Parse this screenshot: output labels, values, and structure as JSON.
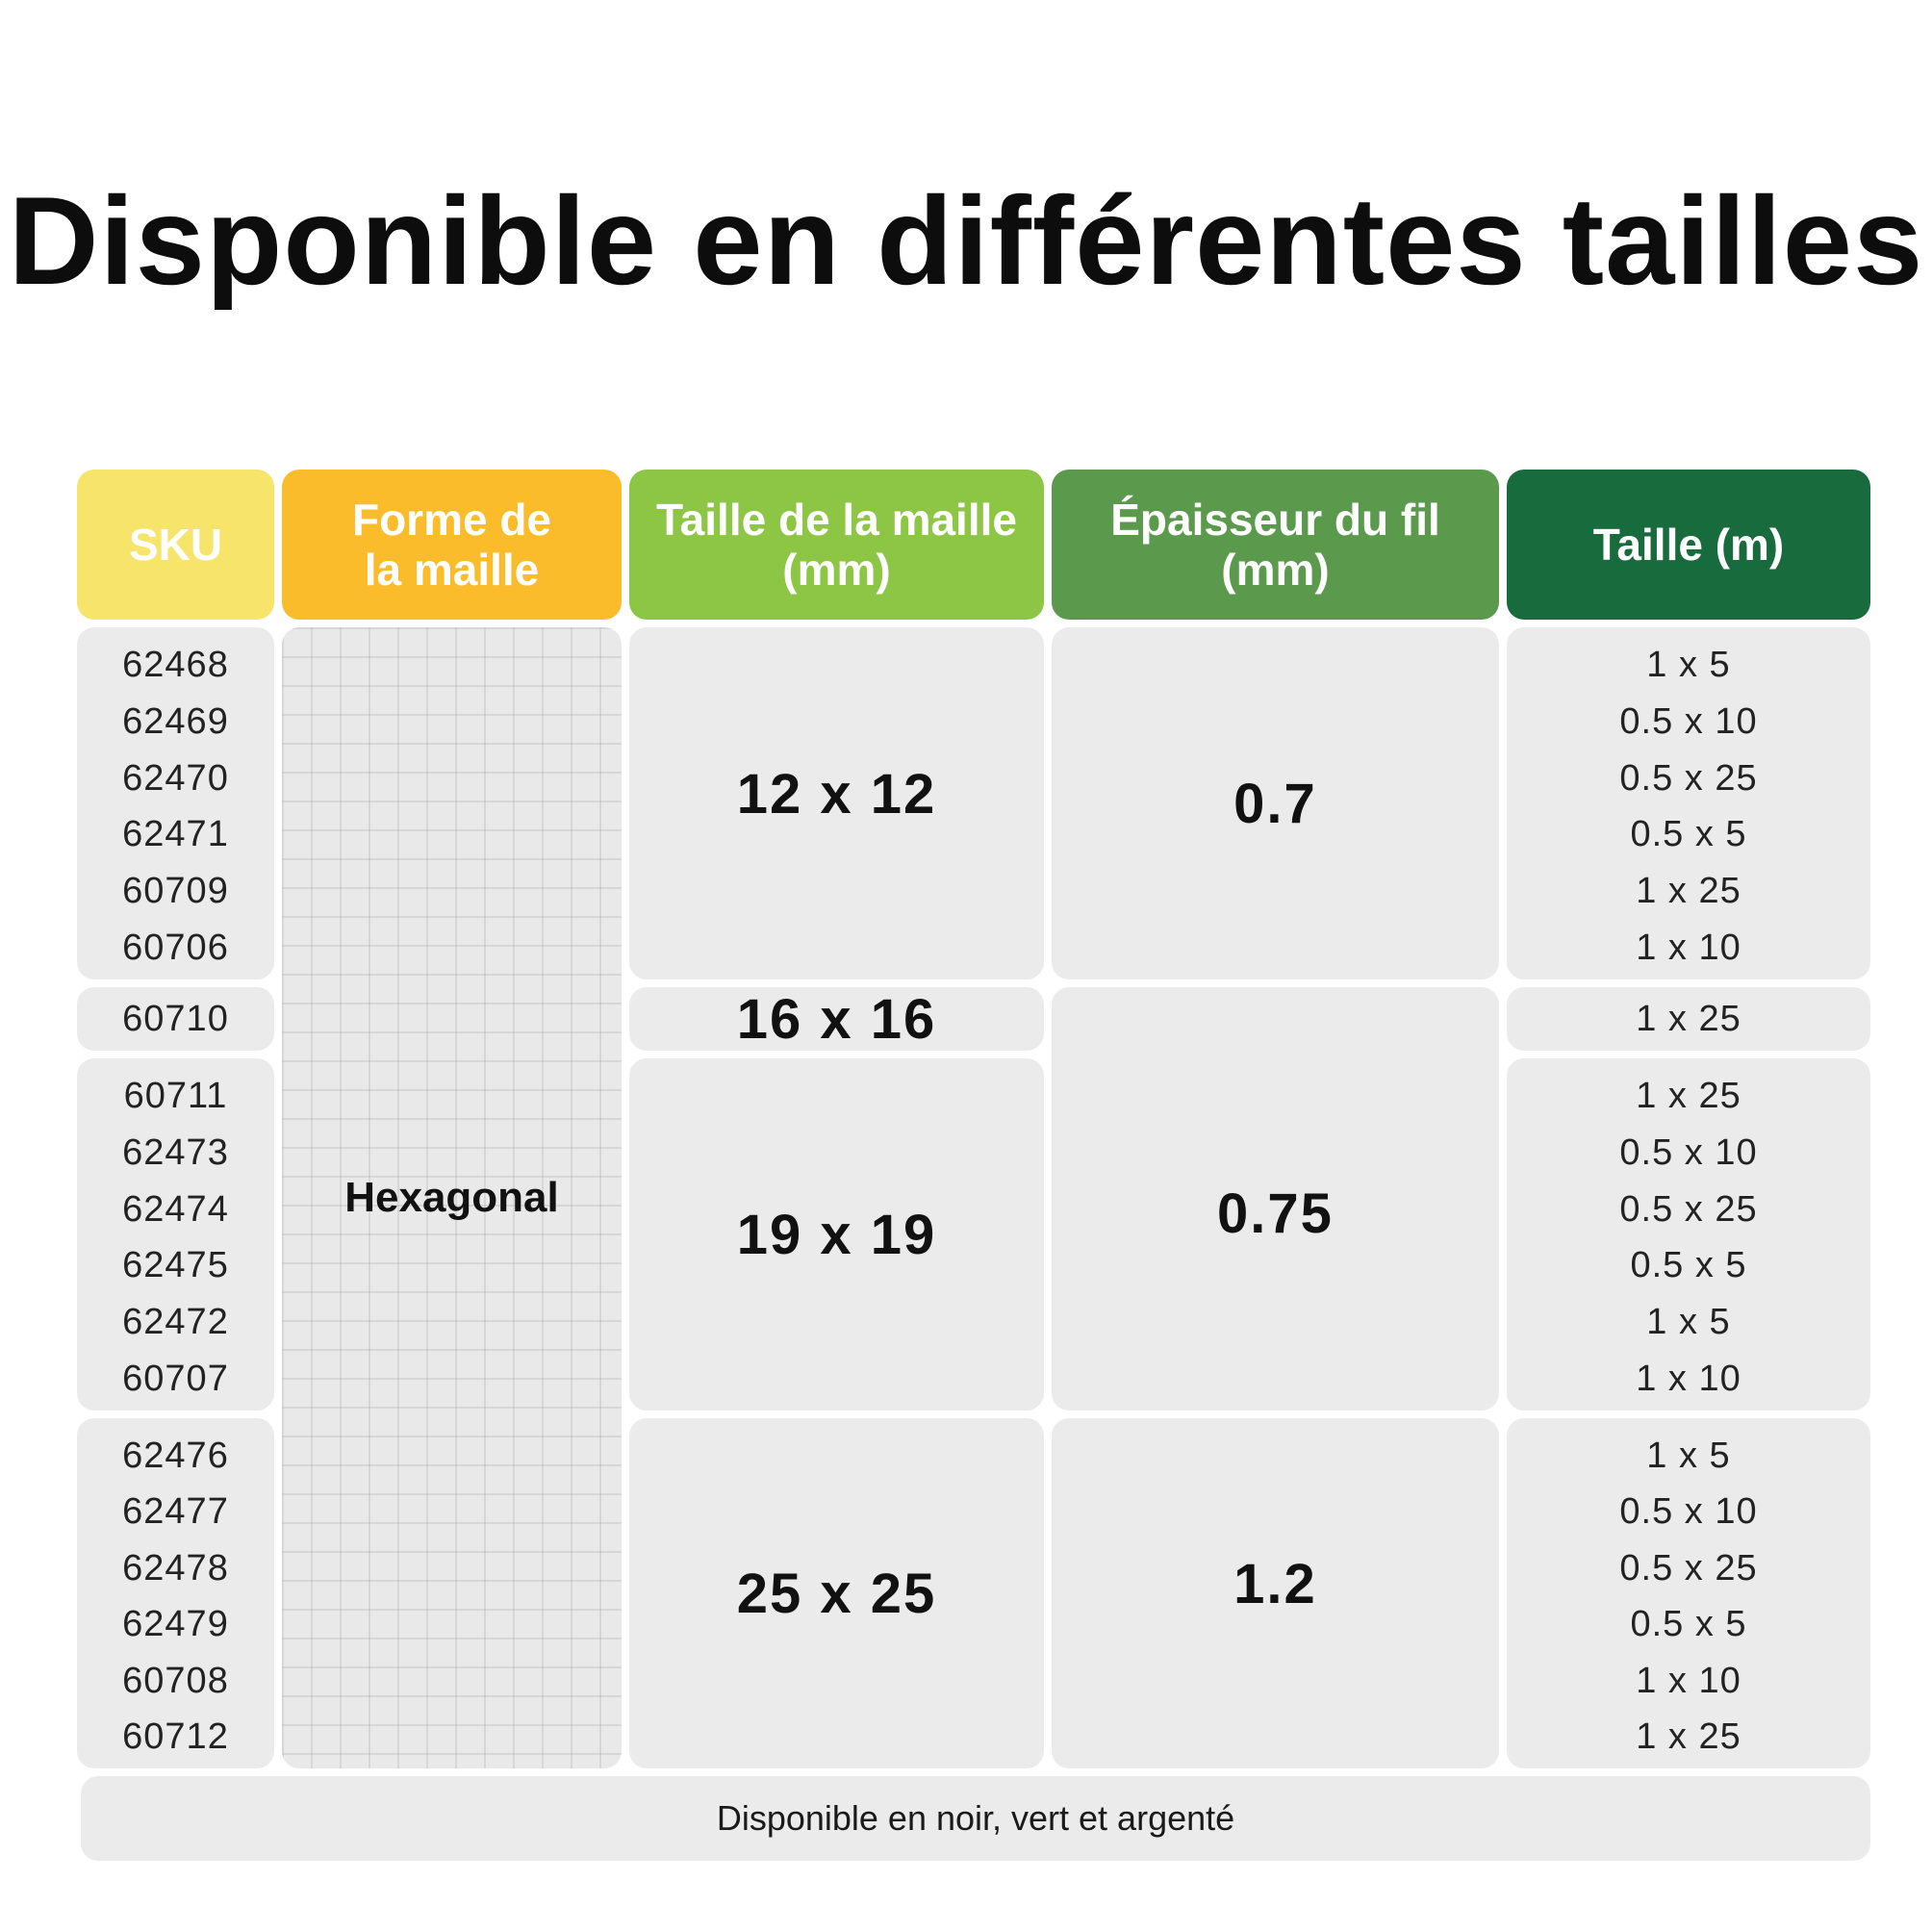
{
  "title": "Disponible en différentes tailles",
  "headers": {
    "sku": "SKU",
    "shape": "Forme de\nla maille",
    "mesh": "Taille de la maille\n(mm)",
    "wire": "Épaisseur du fil\n(mm)",
    "size": "Taille (m)"
  },
  "header_colors": {
    "sku": "#f6e46b",
    "shape": "#fbbc2c",
    "mesh": "#8dc544",
    "wire": "#5b9a4c",
    "size": "#176b3c"
  },
  "shape": "Hexagonal",
  "groups": [
    {
      "skus": [
        "62468",
        "62469",
        "62470",
        "62471",
        "60709",
        "60706"
      ],
      "mesh": "12 x 12",
      "sizes": [
        "1 x 5",
        "0.5 x 10",
        "0.5 x 25",
        "0.5 x 5",
        "1 x 25",
        "1 x 10"
      ]
    },
    {
      "skus": [
        "60710"
      ],
      "mesh": "16 x 16",
      "sizes": [
        "1 x 25"
      ]
    },
    {
      "skus": [
        "60711",
        "62473",
        "62474",
        "62475",
        "62472",
        "60707"
      ],
      "mesh": "19 x 19",
      "sizes": [
        "1 x 25",
        "0.5 x 10",
        "0.5 x 25",
        "0.5 x 5",
        "1 x 5",
        "1 x 10"
      ]
    },
    {
      "skus": [
        "62476",
        "62477",
        "62478",
        "62479",
        "60708",
        "60712"
      ],
      "mesh": "25 x 25",
      "sizes": [
        "1 x 5",
        "0.5 x 10",
        "0.5 x 25",
        "0.5 x 5",
        "1 x 10",
        "1 x 25"
      ]
    }
  ],
  "wire_values": [
    "0.7",
    "0.75",
    "1.2"
  ],
  "footer": "Disponible en noir, vert et argenté"
}
